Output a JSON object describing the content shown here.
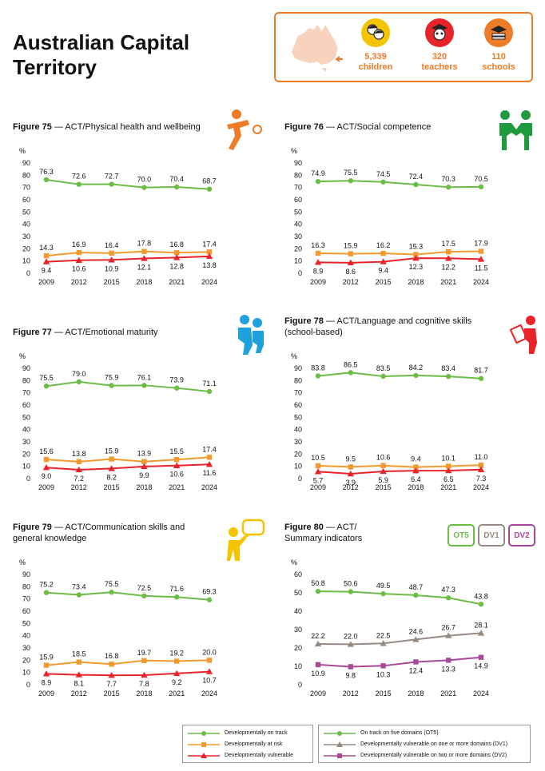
{
  "page_title": "Australian Capital Territory",
  "stats": [
    {
      "value": "5,339",
      "label": "children",
      "color": "#f5c400",
      "icon": "children-icon"
    },
    {
      "value": "320",
      "label": "teachers",
      "color": "#e8232a",
      "icon": "teacher-icon"
    },
    {
      "value": "110",
      "label": "schools",
      "color": "#ee7b26",
      "icon": "school-icon"
    }
  ],
  "legend_left": [
    {
      "label": "Developmentally on track",
      "color": "#6cbd45",
      "marker": "circle"
    },
    {
      "label": "Developmentally at risk",
      "color": "#f39a2e",
      "marker": "square"
    },
    {
      "label": "Developmentally vulnerable",
      "color": "#e8232a",
      "marker": "triangle"
    }
  ],
  "legend_right": [
    {
      "label": "On track on five domains (OT5)",
      "color": "#6cbd45",
      "marker": "circle"
    },
    {
      "label": "Developmentally vulnerable on one or more domains (DV1)",
      "color": "#958b84",
      "marker": "triangle"
    },
    {
      "label": "Developmentally vulnerable on two or more domains (DV2)",
      "color": "#a8489a",
      "marker": "square"
    }
  ],
  "summary_pills": [
    {
      "label": "OT5",
      "color": "#6cbd45"
    },
    {
      "label": "DV1",
      "color": "#958b84"
    },
    {
      "label": "DV2",
      "color": "#a8489a"
    }
  ],
  "chart_data": [
    {
      "type": "line",
      "fig": "Figure 75",
      "title": " — ACT/Physical health and wellbeing",
      "ylabel": "%",
      "x": [
        "2009",
        "2012",
        "2015",
        "2018",
        "2021",
        "2024"
      ],
      "ylim": [
        0,
        90
      ],
      "yticks": [
        0,
        10,
        20,
        30,
        40,
        50,
        60,
        70,
        80,
        90
      ],
      "series": [
        {
          "values": [
            76.3,
            72.6,
            72.7,
            70.0,
            70.4,
            68.7
          ],
          "color": "#6cbd45",
          "marker": "circle",
          "labels": [
            "76.3",
            "72.6",
            "72.7",
            "70.0",
            "70.4",
            "68.7"
          ]
        },
        {
          "values": [
            14.3,
            16.9,
            16.4,
            17.8,
            16.8,
            17.4
          ],
          "color": "#f39a2e",
          "marker": "square",
          "labels": [
            "14.3",
            "16.9",
            "16.4",
            "17.8",
            "16.8",
            "17.4"
          ]
        },
        {
          "values": [
            9.4,
            10.6,
            10.9,
            12.1,
            12.8,
            13.8
          ],
          "color": "#e8232a",
          "marker": "triangle",
          "labels": [
            "9.4",
            "10.6",
            "10.9",
            "12.1",
            "12.8",
            "13.8"
          ]
        }
      ]
    },
    {
      "type": "line",
      "fig": "Figure 76",
      "title": " — ACT/Social competence",
      "ylabel": "%",
      "x": [
        "2009",
        "2012",
        "2015",
        "2018",
        "2021",
        "2024"
      ],
      "ylim": [
        0,
        90
      ],
      "yticks": [
        0,
        10,
        20,
        30,
        40,
        50,
        60,
        70,
        80,
        90
      ],
      "series": [
        {
          "values": [
            74.9,
            75.5,
            74.5,
            72.4,
            70.3,
            70.5
          ],
          "color": "#6cbd45",
          "marker": "circle",
          "labels": [
            "74.9",
            "75.5",
            "74.5",
            "72.4",
            "70.3",
            "70.5"
          ]
        },
        {
          "values": [
            16.3,
            15.9,
            16.2,
            15.3,
            17.5,
            17.9
          ],
          "color": "#f39a2e",
          "marker": "square",
          "labels": [
            "16.3",
            "15.9",
            "16.2",
            "15.3",
            "17.5",
            "17.9"
          ]
        },
        {
          "values": [
            8.9,
            8.6,
            9.4,
            12.3,
            12.2,
            11.5
          ],
          "color": "#e8232a",
          "marker": "triangle",
          "labels": [
            "8.9",
            "8.6",
            "9.4",
            "12.3",
            "12.2",
            "11.5"
          ]
        }
      ]
    },
    {
      "type": "line",
      "fig": "Figure 77",
      "title": " — ACT/Emotional maturity",
      "ylabel": "%",
      "x": [
        "2009",
        "2012",
        "2015",
        "2018",
        "2021",
        "2024"
      ],
      "ylim": [
        0,
        90
      ],
      "yticks": [
        0,
        10,
        20,
        30,
        40,
        50,
        60,
        70,
        80,
        90
      ],
      "series": [
        {
          "values": [
            75.5,
            79.0,
            75.9,
            76.1,
            73.9,
            71.1
          ],
          "color": "#6cbd45",
          "marker": "circle",
          "labels": [
            "75.5",
            "79.0",
            "75.9",
            "76.1",
            "73.9",
            "71.1"
          ]
        },
        {
          "values": [
            15.6,
            13.8,
            15.9,
            13.9,
            15.5,
            17.4
          ],
          "color": "#f39a2e",
          "marker": "square",
          "labels": [
            "15.6",
            "13.8",
            "15.9",
            "13.9",
            "15.5",
            "17.4"
          ]
        },
        {
          "values": [
            9.0,
            7.2,
            8.2,
            9.9,
            10.6,
            11.6
          ],
          "color": "#e8232a",
          "marker": "triangle",
          "labels": [
            "9.0",
            "7.2",
            "8.2",
            "9.9",
            "10.6",
            "11.6"
          ]
        }
      ]
    },
    {
      "type": "line",
      "fig": "Figure 78",
      "title": " — ACT/Language and cognitive skills (school-based)",
      "ylabel": "%",
      "x": [
        "2009",
        "2012",
        "2015",
        "2018",
        "2021",
        "2024"
      ],
      "ylim": [
        0,
        90
      ],
      "yticks": [
        0,
        10,
        20,
        30,
        40,
        50,
        60,
        70,
        80,
        90
      ],
      "series": [
        {
          "values": [
            83.8,
            86.5,
            83.5,
            84.2,
            83.4,
            81.7
          ],
          "color": "#6cbd45",
          "marker": "circle",
          "labels": [
            "83.8",
            "86.5",
            "83.5",
            "84.2",
            "83.4",
            "81.7"
          ]
        },
        {
          "values": [
            10.5,
            9.5,
            10.6,
            9.4,
            10.1,
            11.0
          ],
          "color": "#f39a2e",
          "marker": "square",
          "labels": [
            "10.5",
            "9.5",
            "10.6",
            "9.4",
            "10.1",
            "11.0"
          ]
        },
        {
          "values": [
            5.7,
            3.9,
            5.9,
            6.4,
            6.5,
            7.3
          ],
          "color": "#e8232a",
          "marker": "triangle",
          "labels": [
            "5.7",
            "3.9",
            "5.9",
            "6.4",
            "6.5",
            "7.3"
          ]
        }
      ]
    },
    {
      "type": "line",
      "fig": "Figure 79",
      "title": " — ACT/Communication skills and general knowledge",
      "ylabel": "%",
      "x": [
        "2009",
        "2012",
        "2015",
        "2018",
        "2021",
        "2024"
      ],
      "ylim": [
        0,
        90
      ],
      "yticks": [
        0,
        10,
        20,
        30,
        40,
        50,
        60,
        70,
        80,
        90
      ],
      "series": [
        {
          "values": [
            75.2,
            73.4,
            75.5,
            72.5,
            71.6,
            69.3
          ],
          "color": "#6cbd45",
          "marker": "circle",
          "labels": [
            "75.2",
            "73.4",
            "75.5",
            "72.5",
            "71.6",
            "69.3"
          ]
        },
        {
          "values": [
            15.9,
            18.5,
            16.8,
            19.7,
            19.2,
            20.0
          ],
          "color": "#f39a2e",
          "marker": "square",
          "labels": [
            "15.9",
            "18.5",
            "16.8",
            "19.7",
            "19.2",
            "20.0"
          ]
        },
        {
          "values": [
            8.9,
            8.1,
            7.7,
            7.8,
            9.2,
            10.7
          ],
          "color": "#e8232a",
          "marker": "triangle",
          "labels": [
            "8.9",
            "8.1",
            "7.7",
            "7.8",
            "9.2",
            "10.7"
          ]
        }
      ]
    },
    {
      "type": "line",
      "fig": "Figure 80",
      "title": " — ACT/ Summary indicators",
      "ylabel": "%",
      "x": [
        "2009",
        "2012",
        "2015",
        "2018",
        "2021",
        "2024"
      ],
      "ylim": [
        0,
        60
      ],
      "yticks": [
        0,
        10,
        20,
        30,
        40,
        50,
        60
      ],
      "series": [
        {
          "values": [
            50.8,
            50.6,
            49.5,
            48.7,
            47.3,
            43.8
          ],
          "color": "#6cbd45",
          "marker": "circle",
          "labels": [
            "50.8",
            "50.6",
            "49.5",
            "48.7",
            "47.3",
            "43.8"
          ]
        },
        {
          "values": [
            22.2,
            22.0,
            22.5,
            24.6,
            26.7,
            28.1
          ],
          "color": "#958b84",
          "marker": "triangle",
          "labels": [
            "22.2",
            "22.0",
            "22.5",
            "24.6",
            "26.7",
            "28.1"
          ]
        },
        {
          "values": [
            10.9,
            9.8,
            10.3,
            12.4,
            13.3,
            14.9
          ],
          "color": "#a8489a",
          "marker": "square",
          "labels": [
            "10.9",
            "9.8",
            "10.3",
            "12.4",
            "13.3",
            "14.9"
          ]
        }
      ]
    }
  ]
}
